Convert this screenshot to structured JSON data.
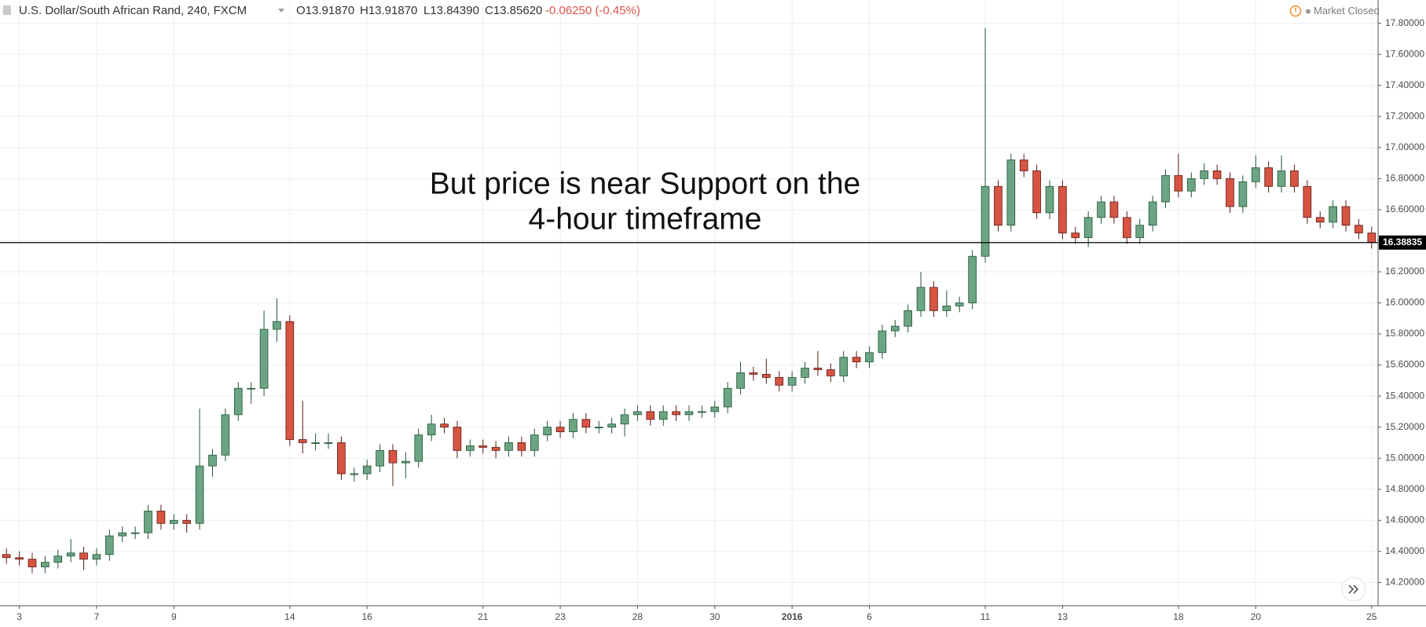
{
  "chart_data": {
    "type": "candlestick",
    "title": "U.S. Dollar/South African Rand, 240, FXCM",
    "header_values": [
      "O13.91870",
      "H13.91870",
      "L13.84390",
      "C13.85620"
    ],
    "change": "-0.06250 (-0.45%)",
    "status": "Market Closed",
    "annotation": [
      "But price is near Support on the",
      "4-hour timeframe"
    ],
    "categories": [
      null,
      "3",
      null,
      null,
      null,
      null,
      null,
      "7",
      null,
      null,
      null,
      null,
      null,
      "9",
      null,
      null,
      null,
      null,
      null,
      null,
      null,
      null,
      "14",
      null,
      null,
      null,
      null,
      null,
      "16",
      null,
      null,
      null,
      null,
      null,
      null,
      null,
      null,
      "21",
      null,
      null,
      null,
      null,
      null,
      "23",
      null,
      null,
      null,
      null,
      null,
      "28",
      null,
      null,
      null,
      null,
      null,
      "30",
      null,
      null,
      null,
      null,
      null,
      "2016",
      null,
      null,
      null,
      null,
      null,
      "6",
      null,
      null,
      null,
      null,
      null,
      null,
      null,
      null,
      "11",
      null,
      null,
      null,
      null,
      null,
      "13",
      null,
      null,
      null,
      null,
      null,
      null,
      null,
      null,
      "18",
      null,
      null,
      null,
      null,
      null,
      "20",
      null,
      null,
      null,
      null,
      null,
      null,
      null,
      null,
      "25"
    ],
    "open": [
      14.38,
      14.36,
      14.35,
      14.3,
      14.33,
      14.37,
      14.39,
      14.35,
      14.38,
      14.5,
      14.52,
      14.52,
      14.66,
      14.58,
      14.6,
      14.58,
      14.95,
      15.02,
      15.28,
      15.45,
      15.45,
      15.83,
      15.88,
      15.12,
      15.1,
      15.1,
      15.1,
      14.9,
      14.9,
      14.95,
      15.05,
      14.97,
      14.98,
      15.15,
      15.22,
      15.2,
      15.05,
      15.08,
      15.07,
      15.05,
      15.1,
      15.05,
      15.15,
      15.2,
      15.17,
      15.25,
      15.2,
      15.2,
      15.22,
      15.28,
      15.3,
      15.25,
      15.3,
      15.28,
      15.3,
      15.3,
      15.33,
      15.45,
      15.55,
      15.54,
      15.52,
      15.47,
      15.52,
      15.58,
      15.57,
      15.53,
      15.65,
      15.62,
      15.68,
      15.82,
      15.85,
      15.95,
      16.1,
      15.95,
      15.98,
      16.0,
      16.3,
      16.75,
      16.5,
      16.92,
      16.85,
      16.58,
      16.75,
      16.45,
      16.42,
      16.55,
      16.65,
      16.55,
      16.42,
      16.5,
      16.65,
      16.82,
      16.72,
      16.8,
      16.85,
      16.8,
      16.62,
      16.78,
      16.87,
      16.75,
      16.85,
      16.75,
      16.55,
      16.52,
      16.62,
      16.5,
      16.45
    ],
    "high": [
      14.42,
      14.4,
      14.39,
      14.37,
      14.41,
      14.48,
      14.43,
      14.42,
      14.54,
      14.56,
      14.56,
      14.7,
      14.7,
      14.64,
      14.64,
      15.32,
      15.06,
      15.32,
      15.49,
      15.49,
      15.95,
      16.03,
      15.92,
      15.37,
      15.16,
      15.16,
      15.14,
      14.94,
      14.99,
      15.09,
      15.09,
      15.04,
      15.19,
      15.28,
      15.26,
      15.24,
      15.12,
      15.12,
      15.11,
      15.14,
      15.14,
      15.19,
      15.24,
      15.24,
      15.29,
      15.29,
      15.24,
      15.26,
      15.32,
      15.34,
      15.34,
      15.34,
      15.34,
      15.34,
      15.34,
      15.37,
      15.49,
      15.62,
      15.59,
      15.64,
      15.56,
      15.56,
      15.62,
      15.69,
      15.61,
      15.69,
      15.69,
      15.72,
      15.86,
      15.89,
      15.99,
      16.2,
      16.14,
      16.08,
      16.04,
      16.34,
      17.77,
      16.79,
      16.96,
      16.96,
      16.89,
      16.79,
      16.79,
      16.49,
      16.59,
      16.69,
      16.69,
      16.59,
      16.54,
      16.69,
      16.86,
      16.96,
      16.84,
      16.9,
      16.89,
      16.84,
      16.82,
      16.95,
      16.91,
      16.95,
      16.89,
      16.79,
      16.59,
      16.66,
      16.66,
      16.54,
      16.49
    ],
    "low": [
      14.32,
      14.31,
      14.26,
      14.26,
      14.29,
      14.33,
      14.28,
      14.31,
      14.34,
      14.46,
      14.48,
      14.48,
      14.54,
      14.54,
      14.52,
      14.54,
      14.88,
      14.98,
      15.24,
      15.35,
      15.4,
      15.75,
      15.08,
      15.03,
      15.05,
      15.06,
      14.86,
      14.85,
      14.86,
      14.91,
      14.82,
      14.87,
      14.94,
      15.11,
      15.16,
      15.0,
      15.01,
      15.03,
      15.0,
      15.01,
      15.01,
      15.01,
      15.11,
      15.13,
      15.13,
      15.16,
      15.16,
      15.16,
      15.14,
      15.24,
      15.21,
      15.21,
      15.24,
      15.24,
      15.26,
      15.26,
      15.29,
      15.41,
      15.5,
      15.48,
      15.43,
      15.43,
      15.48,
      15.53,
      15.49,
      15.49,
      15.58,
      15.58,
      15.64,
      15.78,
      15.81,
      15.91,
      15.91,
      15.91,
      15.94,
      15.96,
      16.26,
      16.46,
      16.46,
      16.81,
      16.54,
      16.54,
      16.41,
      16.38,
      16.36,
      16.51,
      16.51,
      16.38,
      16.38,
      16.46,
      16.61,
      16.68,
      16.68,
      16.76,
      16.76,
      16.58,
      16.58,
      16.74,
      16.71,
      16.71,
      16.71,
      16.51,
      16.48,
      16.48,
      16.46,
      16.41,
      16.35
    ],
    "close": [
      14.36,
      14.35,
      14.3,
      14.33,
      14.37,
      14.39,
      14.35,
      14.38,
      14.5,
      14.52,
      14.52,
      14.66,
      14.58,
      14.6,
      14.58,
      14.95,
      15.02,
      15.28,
      15.45,
      15.45,
      15.83,
      15.88,
      15.12,
      15.1,
      15.1,
      15.1,
      14.9,
      14.9,
      14.95,
      15.05,
      14.97,
      14.98,
      15.15,
      15.22,
      15.2,
      15.05,
      15.08,
      15.07,
      15.05,
      15.1,
      15.05,
      15.15,
      15.2,
      15.17,
      15.25,
      15.2,
      15.2,
      15.22,
      15.28,
      15.3,
      15.25,
      15.3,
      15.28,
      15.3,
      15.3,
      15.33,
      15.45,
      15.55,
      15.54,
      15.52,
      15.47,
      15.52,
      15.58,
      15.57,
      15.53,
      15.65,
      15.62,
      15.68,
      15.82,
      15.85,
      15.95,
      16.1,
      15.95,
      15.98,
      16.0,
      16.3,
      16.75,
      16.5,
      16.92,
      16.85,
      16.58,
      16.75,
      16.45,
      16.42,
      16.55,
      16.65,
      16.55,
      16.42,
      16.5,
      16.65,
      16.82,
      16.72,
      16.8,
      16.85,
      16.8,
      16.62,
      16.78,
      16.87,
      16.75,
      16.85,
      16.75,
      16.55,
      16.52,
      16.62,
      16.5,
      16.45,
      16.39
    ],
    "up_color": "#6ba583",
    "up_border": "#225437",
    "down_color": "#d75442",
    "down_border": "#5b1a13",
    "change_color": "#e0514a",
    "ylim": [
      14.05,
      17.95
    ],
    "yticks": [
      {
        "value": 14.2,
        "label": "14.20000"
      },
      {
        "value": 14.4,
        "label": "14.40000"
      },
      {
        "value": 14.6,
        "label": "14.60000"
      },
      {
        "value": 14.8,
        "label": "14.80000"
      },
      {
        "value": 15.0,
        "label": "15.00000"
      },
      {
        "value": 15.2,
        "label": "15.20000"
      },
      {
        "value": 15.4,
        "label": "15.40000"
      },
      {
        "value": 15.6,
        "label": "15.60000"
      },
      {
        "value": 15.8,
        "label": "15.80000"
      },
      {
        "value": 16.0,
        "label": "16.00000"
      },
      {
        "value": 16.2,
        "label": "16.20000"
      },
      {
        "value": 16.4,
        "label": "16.40000"
      },
      {
        "value": 16.6,
        "label": "16.60000"
      },
      {
        "value": 16.8,
        "label": "16.80000"
      },
      {
        "value": 17.0,
        "label": "17.00000"
      },
      {
        "value": 17.2,
        "label": "17.20000"
      },
      {
        "value": 17.4,
        "label": "17.40000"
      },
      {
        "value": 17.6,
        "label": "17.60000"
      },
      {
        "value": 17.8,
        "label": "17.80000"
      }
    ],
    "grid": true,
    "support": {
      "value": 16.38835,
      "color": "#000000"
    }
  }
}
